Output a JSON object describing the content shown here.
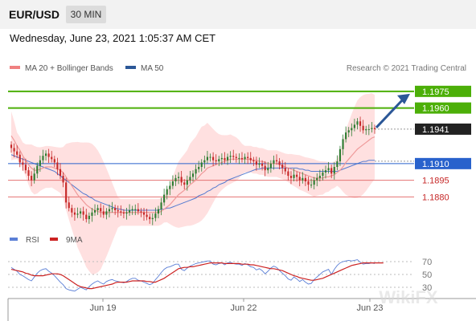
{
  "header": {
    "symbol": "EUR/USD",
    "timeframe": "30 MIN"
  },
  "date_line": "Wednesday, June 23, 2021 1:05:37 AM CET",
  "legend": {
    "ma20": {
      "label": "MA 20 + Bollinger Bands",
      "color": "#f08080"
    },
    "ma50": {
      "label": "MA 50",
      "color": "#2b5797"
    }
  },
  "credit": "Research © 2021 Trading Central",
  "watermark": "WikiFX",
  "colors": {
    "up": "#2e7d32",
    "down": "#c62828",
    "resistance": "#4caf08",
    "pivot": "#2962cc",
    "support": "#e57373",
    "last": "#222222",
    "arrow": "#2b5797",
    "band": "#ffd5d5"
  },
  "chart_data": [
    {
      "type": "candlestick",
      "title": "EUR/USD",
      "x_ticks": [
        "Jun 19",
        "Jun 22",
        "Jun 23"
      ],
      "ylim": [
        1.1855,
        1.1985
      ],
      "levels": [
        {
          "label": "1.1975",
          "value": 1.1975,
          "kind": "resistance"
        },
        {
          "label": "1.1960",
          "value": 1.196,
          "kind": "resistance"
        },
        {
          "label": "1.1941",
          "value": 1.1941,
          "kind": "last"
        },
        {
          "label": "1.1910",
          "value": 1.191,
          "kind": "pivot"
        },
        {
          "label": "1.1895",
          "value": 1.1895,
          "kind": "support"
        },
        {
          "label": "1.1880",
          "value": 1.188,
          "kind": "support"
        }
      ],
      "close": [
        1.1924,
        1.1921,
        1.1918,
        1.1911,
        1.1909,
        1.1904,
        1.1899,
        1.1895,
        1.1901,
        1.1908,
        1.1913,
        1.1917,
        1.1919,
        1.1916,
        1.1914,
        1.1911,
        1.1905,
        1.1899,
        1.1893,
        1.1875,
        1.187,
        1.1866,
        1.1864,
        1.1865,
        1.1867,
        1.1864,
        1.186,
        1.1863,
        1.1866,
        1.1868,
        1.187,
        1.1867,
        1.1864,
        1.1867,
        1.1869,
        1.187,
        1.1868,
        1.1867,
        1.1866,
        1.1865,
        1.1866,
        1.1868,
        1.1869,
        1.1869,
        1.1867,
        1.1866,
        1.1864,
        1.1862,
        1.186,
        1.1861,
        1.1865,
        1.1869,
        1.1875,
        1.1882,
        1.1887,
        1.189,
        1.1894,
        1.1897,
        1.1898,
        1.1893,
        1.1891,
        1.1895,
        1.1898,
        1.1901,
        1.1905,
        1.1907,
        1.1911,
        1.1913,
        1.1916,
        1.1916,
        1.1913,
        1.1912,
        1.1914,
        1.1915,
        1.1913,
        1.1916,
        1.1917,
        1.1916,
        1.1915,
        1.1915,
        1.1914,
        1.1916,
        1.1915,
        1.1913,
        1.1912,
        1.1909,
        1.191,
        1.1908,
        1.1904,
        1.1906,
        1.191,
        1.1913,
        1.1912,
        1.1909,
        1.1906,
        1.1903,
        1.1899,
        1.1897,
        1.19,
        1.1898,
        1.1895,
        1.1897,
        1.1894,
        1.1891,
        1.1891,
        1.1895,
        1.1897,
        1.1899,
        1.1902,
        1.1904,
        1.1906,
        1.1901,
        1.1907,
        1.1912,
        1.1923,
        1.1932,
        1.1938,
        1.194,
        1.1942,
        1.1945,
        1.1948,
        1.1944,
        1.194,
        1.1941,
        1.1941,
        1.1942,
        1.1941
      ],
      "ma20": [
        1.1935,
        1.1931,
        1.1926,
        1.1922,
        1.1917,
        1.1913,
        1.1909,
        1.1906,
        1.1904,
        1.1904,
        1.1905,
        1.1906,
        1.1907,
        1.1907,
        1.1907,
        1.1906,
        1.1905,
        1.1904,
        1.1902,
        1.1898,
        1.1894,
        1.189,
        1.1886,
        1.1882,
        1.1879,
        1.1876,
        1.1873,
        1.1871,
        1.1869,
        1.1868,
        1.1867,
        1.1866,
        1.1866,
        1.1866,
        1.1866,
        1.1866,
        1.1866,
        1.1866,
        1.1866,
        1.1866,
        1.1866,
        1.1866,
        1.1866,
        1.1866,
        1.1866,
        1.1866,
        1.1866,
        1.1866,
        1.1866,
        1.1866,
        1.1866,
        1.1866,
        1.1867,
        1.1869,
        1.1871,
        1.1873,
        1.1876,
        1.1879,
        1.1882,
        1.1884,
        1.1886,
        1.1888,
        1.1891,
        1.1893,
        1.1895,
        1.1898,
        1.1901,
        1.1903,
        1.1906,
        1.1907,
        1.1908,
        1.1909,
        1.191,
        1.1911,
        1.1912,
        1.1913,
        1.1914,
        1.1914,
        1.1914,
        1.1914,
        1.1914,
        1.1914,
        1.1914,
        1.1914,
        1.1913,
        1.1913,
        1.1912,
        1.1912,
        1.1911,
        1.191,
        1.191,
        1.191,
        1.191,
        1.1909,
        1.1908,
        1.1907,
        1.1906,
        1.1905,
        1.1904,
        1.1903,
        1.1902,
        1.1901,
        1.19,
        1.1899,
        1.1898,
        1.1897,
        1.1897,
        1.1897,
        1.1897,
        1.1898,
        1.1898,
        1.1899,
        1.19,
        1.1902,
        1.1904,
        1.1907,
        1.1911,
        1.1914,
        1.1917,
        1.192,
        1.1923,
        1.1925,
        1.1927,
        1.1929,
        1.1931,
        1.1933,
        1.1934
      ],
      "ma50": [
        1.1918,
        1.1917,
        1.1916,
        1.1915,
        1.1914,
        1.1913,
        1.1912,
        1.1911,
        1.191,
        1.1909,
        1.1908,
        1.1907,
        1.1906,
        1.1905,
        1.1904,
        1.1903,
        1.1901,
        1.1899,
        1.1897,
        1.1895,
        1.1893,
        1.1891,
        1.1889,
        1.1887,
        1.1885,
        1.1883,
        1.1882,
        1.188,
        1.1879,
        1.1877,
        1.1876,
        1.1875,
        1.1874,
        1.1873,
        1.1872,
        1.1871,
        1.187,
        1.1869,
        1.1869,
        1.1868,
        1.1868,
        1.1868,
        1.1868,
        1.1868,
        1.1868,
        1.1868,
        1.1868,
        1.1868,
        1.1868,
        1.1868,
        1.1868,
        1.1868,
        1.1869,
        1.1869,
        1.187,
        1.187,
        1.1871,
        1.1872,
        1.1873,
        1.1874,
        1.1875,
        1.1876,
        1.1877,
        1.1878,
        1.1879,
        1.1881,
        1.1882,
        1.1883,
        1.1885,
        1.1886,
        1.1888,
        1.1889,
        1.1891,
        1.1892,
        1.1893,
        1.1895,
        1.1896,
        1.1897,
        1.1898,
        1.1899,
        1.19,
        1.1901,
        1.1902,
        1.1903,
        1.1904,
        1.1905,
        1.1905,
        1.1906,
        1.1906,
        1.1906,
        1.1906,
        1.1906,
        1.1906,
        1.1906,
        1.1906,
        1.1906,
        1.1906,
        1.1906,
        1.1906,
        1.1906,
        1.1905,
        1.1905,
        1.1904,
        1.1904,
        1.1903,
        1.1903,
        1.1903,
        1.1903,
        1.1903,
        1.1903,
        1.1903,
        1.1903,
        1.1903,
        1.1903,
        1.1904,
        1.1905,
        1.1906,
        1.1907,
        1.1908,
        1.1909,
        1.191,
        1.1911,
        1.1912,
        1.1912,
        1.1913,
        1.1913,
        1.1913
      ]
    },
    {
      "type": "line",
      "legend": [
        "RSI",
        "9MA"
      ],
      "series": [
        {
          "name": "RSI",
          "color": "#5b7fd6",
          "values": [
            61,
            58,
            55,
            50,
            48,
            45,
            42,
            40,
            46,
            52,
            56,
            58,
            59,
            55,
            52,
            48,
            43,
            38,
            34,
            28,
            26,
            25,
            24,
            27,
            30,
            28,
            26,
            31,
            35,
            38,
            40,
            37,
            35,
            39,
            41,
            42,
            40,
            39,
            38,
            37,
            39,
            42,
            44,
            44,
            41,
            40,
            38,
            36,
            34,
            36,
            42,
            47,
            53,
            58,
            61,
            62,
            64,
            66,
            66,
            58,
            56,
            60,
            63,
            65,
            67,
            68,
            69,
            70,
            71,
            71,
            66,
            65,
            67,
            68,
            65,
            68,
            69,
            67,
            66,
            66,
            64,
            67,
            65,
            62,
            61,
            57,
            59,
            56,
            51,
            55,
            60,
            63,
            61,
            56,
            52,
            48,
            43,
            41,
            46,
            43,
            39,
            42,
            38,
            35,
            36,
            42,
            46,
            50,
            54,
            56,
            58,
            50,
            58,
            64,
            68,
            70,
            71,
            72,
            71,
            72,
            73,
            69,
            66,
            67,
            67,
            68,
            67
          ]
        },
        {
          "name": "9MA",
          "color": "#cc2222",
          "values": [
            58,
            57,
            56,
            55,
            54,
            52,
            51,
            49,
            48,
            48,
            48,
            48,
            49,
            50,
            51,
            51,
            51,
            50,
            48,
            45,
            42,
            39,
            36,
            33,
            31,
            30,
            29,
            28,
            28,
            29,
            30,
            31,
            32,
            33,
            34,
            35,
            37,
            38,
            38,
            38,
            38,
            39,
            40,
            40,
            40,
            40,
            40,
            39,
            39,
            38,
            38,
            40,
            42,
            44,
            47,
            50,
            53,
            56,
            59,
            60,
            61,
            61,
            62,
            62,
            63,
            64,
            65,
            66,
            67,
            68,
            68,
            68,
            68,
            68,
            67,
            67,
            67,
            67,
            67,
            67,
            66,
            66,
            66,
            65,
            65,
            64,
            63,
            62,
            61,
            60,
            59,
            59,
            58,
            57,
            56,
            54,
            52,
            50,
            48,
            47,
            45,
            44,
            43,
            42,
            41,
            41,
            42,
            43,
            44,
            46,
            48,
            50,
            52,
            54,
            56,
            58,
            60,
            62,
            64,
            65,
            66,
            67,
            68,
            68,
            68,
            68,
            68,
            68,
            68,
            68
          ]
        }
      ],
      "y_ticks": [
        "70",
        "50",
        "30"
      ],
      "ylim": [
        20,
        80
      ],
      "x_ticks": [
        "Jun 19",
        "Jun 22",
        "Jun 23"
      ]
    }
  ]
}
